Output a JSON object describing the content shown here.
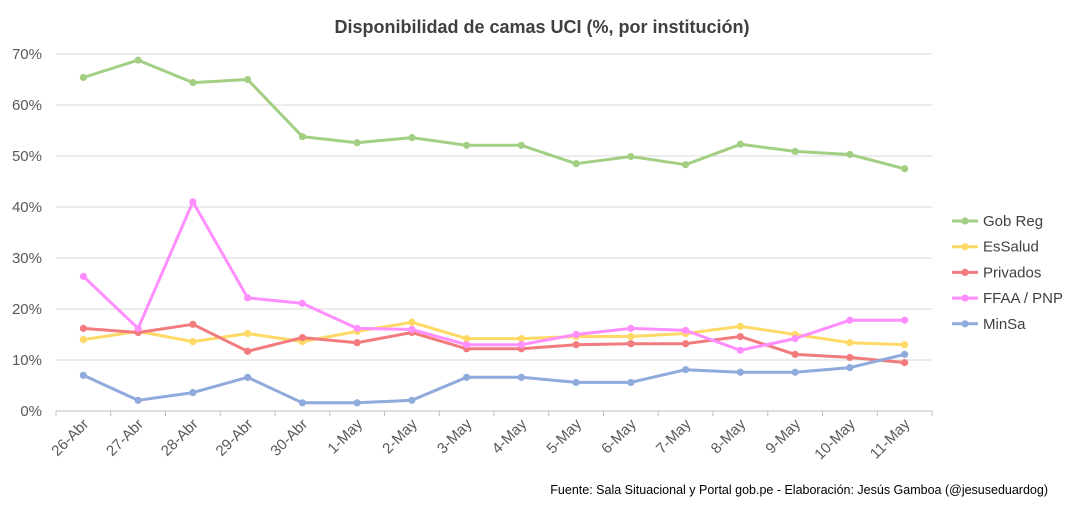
{
  "chart_data": {
    "type": "line",
    "title": "Disponibilidad de camas UCI (%, por institución)",
    "source": "Fuente: Sala Situacional y Portal gob.pe - Elaboración: Jesús Gamboa (@jesuseduardog)",
    "categories": [
      "26-Abr",
      "27-Abr",
      "28-Abr",
      "29-Abr",
      "30-Abr",
      "1-May",
      "2-May",
      "3-May",
      "4-May",
      "5-May",
      "6-May",
      "7-May",
      "8-May",
      "9-May",
      "10-May",
      "11-May"
    ],
    "ylim": [
      0,
      70
    ],
    "yticks": [
      0,
      10,
      20,
      30,
      40,
      50,
      60,
      70
    ],
    "ytick_labels": [
      "0%",
      "10%",
      "20%",
      "30%",
      "40%",
      "50%",
      "60%",
      "70%"
    ],
    "grid": true,
    "legend_position": "right",
    "series": [
      {
        "name": "Gob Reg",
        "color": "#a3cf85",
        "values": [
          65.4,
          68.8,
          64.4,
          65.0,
          53.8,
          52.6,
          53.6,
          52.1,
          52.1,
          48.5,
          49.9,
          48.3,
          52.3,
          50.9,
          50.3,
          47.5
        ]
      },
      {
        "name": "EsSalud",
        "color": "#fed966",
        "values": [
          14.0,
          15.6,
          13.6,
          15.2,
          13.6,
          15.6,
          17.4,
          14.2,
          14.2,
          14.6,
          14.6,
          15.2,
          16.6,
          15.0,
          13.4,
          13.0
        ]
      },
      {
        "name": "Privados",
        "color": "#f27b7e",
        "values": [
          16.2,
          15.4,
          17.0,
          11.7,
          14.4,
          13.4,
          15.4,
          12.2,
          12.2,
          13.0,
          13.2,
          13.2,
          14.6,
          11.1,
          10.5,
          9.5
        ]
      },
      {
        "name": "FFAA / PNP",
        "color": "#ff8eff",
        "values": [
          26.4,
          16.2,
          41.0,
          22.2,
          21.1,
          16.2,
          16.0,
          13.0,
          13.0,
          15.0,
          16.2,
          15.8,
          11.9,
          14.2,
          17.8,
          17.8
        ]
      },
      {
        "name": "MinSa",
        "color": "#8faadb",
        "values": [
          7.0,
          2.1,
          3.6,
          6.6,
          1.6,
          1.6,
          2.1,
          6.6,
          6.6,
          5.6,
          5.6,
          8.1,
          7.6,
          7.6,
          8.5,
          11.1
        ]
      }
    ]
  }
}
